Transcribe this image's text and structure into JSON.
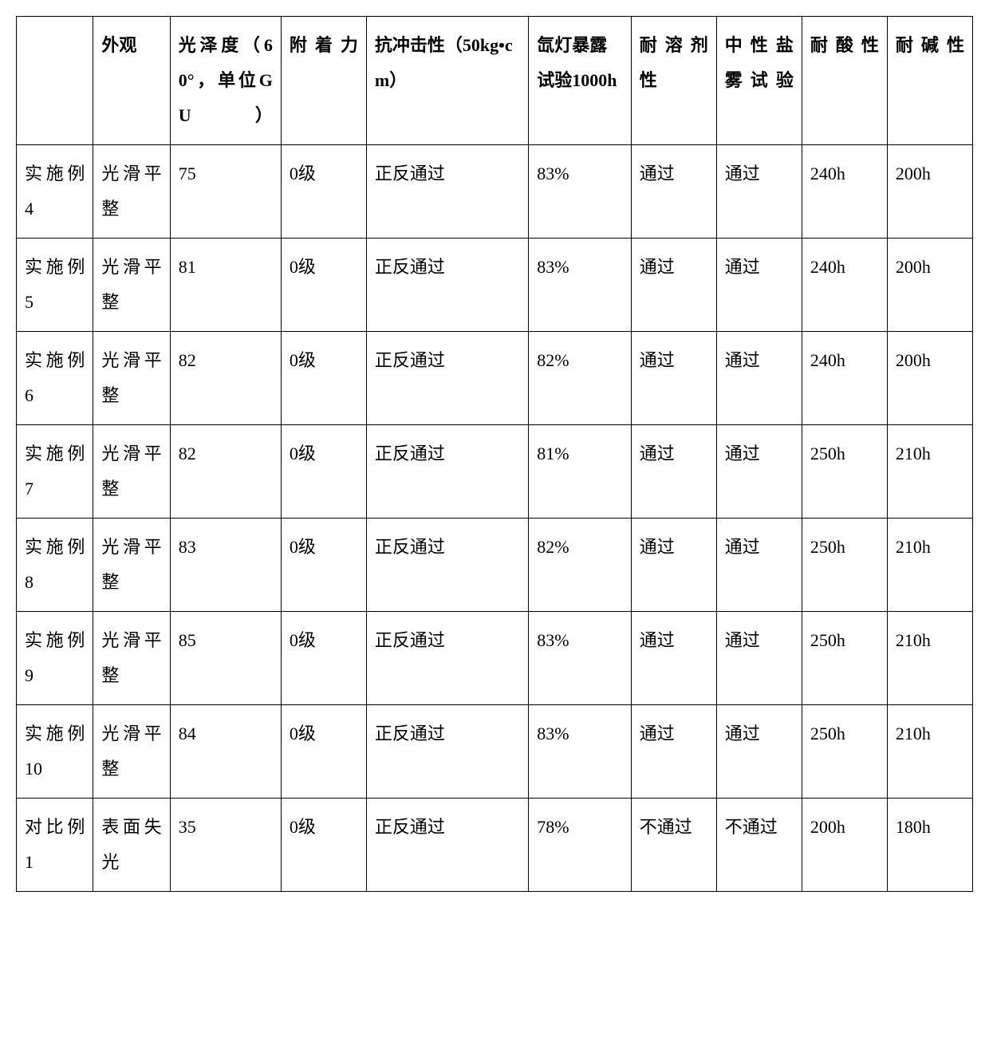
{
  "table": {
    "headers": [
      "",
      "外观",
      "光泽度（60°，单位GU）",
      "附着力",
      "抗冲击性（50kg•cm）",
      "氙灯暴露试验1000h",
      "耐溶剂性",
      "中性盐雾试验",
      "耐酸性",
      "耐碱性"
    ],
    "rows": [
      [
        "实施例4",
        "光滑平整",
        "75",
        "0级",
        "正反通过",
        "83%",
        "通过",
        "通过",
        "240h",
        "200h"
      ],
      [
        "实施例5",
        "光滑平整",
        "81",
        "0级",
        "正反通过",
        "83%",
        "通过",
        "通过",
        "240h",
        "200h"
      ],
      [
        "实施例6",
        "光滑平整",
        "82",
        "0级",
        "正反通过",
        "82%",
        "通过",
        "通过",
        "240h",
        "200h"
      ],
      [
        "实施例7",
        "光滑平整",
        "82",
        "0级",
        "正反通过",
        "81%",
        "通过",
        "通过",
        "250h",
        "210h"
      ],
      [
        "实施例8",
        "光滑平整",
        "83",
        "0级",
        "正反通过",
        "82%",
        "通过",
        "通过",
        "250h",
        "210h"
      ],
      [
        "实施例9",
        "光滑平整",
        "85",
        "0级",
        "正反通过",
        "83%",
        "通过",
        "通过",
        "250h",
        "210h"
      ],
      [
        "实施例10",
        "光滑平整",
        "84",
        "0级",
        "正反通过",
        "83%",
        "通过",
        "通过",
        "250h",
        "210h"
      ],
      [
        "对比例1",
        "表面失光",
        "35",
        "0级",
        "正反通过",
        "78%",
        "不通过",
        "不通过",
        "200h",
        "180h"
      ]
    ],
    "noJustifyCols": [
      4,
      5
    ],
    "border_color": "#000000",
    "background_color": "#ffffff",
    "font_size_pt": 16,
    "font_family": "SimSun"
  }
}
